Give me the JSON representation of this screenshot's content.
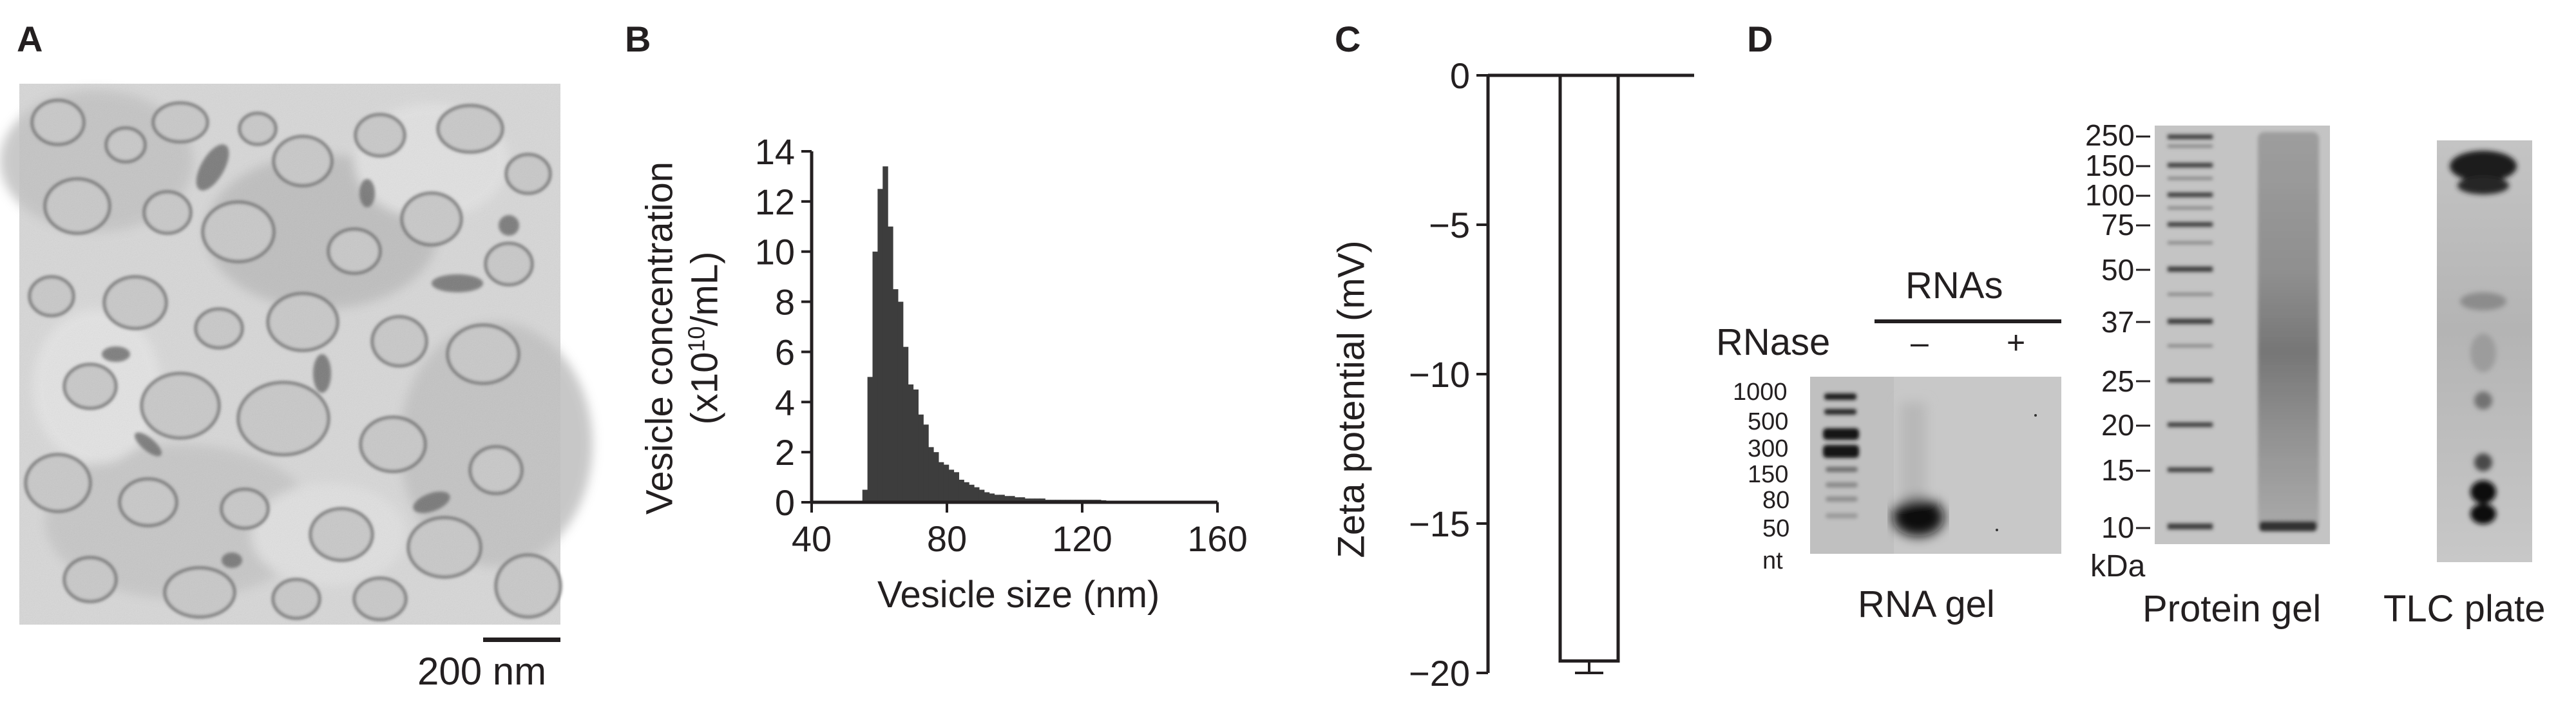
{
  "panels": {
    "a": {
      "label": "A",
      "scalebar": "200 nm"
    },
    "b": {
      "label": "B"
    },
    "c": {
      "label": "C"
    },
    "d": {
      "label": "D",
      "rna_gel": {
        "header": "RNAs",
        "row_label": "RNase",
        "lanes": [
          "–",
          "+"
        ],
        "ladder": [
          "1000",
          "500",
          "300",
          "150",
          "80",
          "50"
        ],
        "ladder_unit": "nt",
        "caption": "RNA gel"
      },
      "protein_gel": {
        "ladder": [
          "250",
          "150",
          "100",
          "75",
          "50",
          "37",
          "25",
          "20",
          "15",
          "10"
        ],
        "ladder_unit": "kDa",
        "caption": "Protein gel"
      },
      "tlc": {
        "caption": "TLC plate"
      }
    }
  },
  "chart_data": [
    {
      "id": "B",
      "type": "bar",
      "title": "",
      "xlabel": "Vesicle size (nm)",
      "ylabel_line1": "Vesicle concentration",
      "ylabel_line2_pre": "(x10",
      "ylabel_line2_sup": "10",
      "ylabel_line2_post": "/mL)",
      "xlim": [
        40,
        160
      ],
      "ylim": [
        0,
        14
      ],
      "xticks": [
        "40",
        "80",
        "120",
        "160"
      ],
      "yticks": [
        "0",
        "2",
        "4",
        "6",
        "8",
        "10",
        "12",
        "14"
      ],
      "bin_width": 1.5,
      "x": [
        55.0,
        56.5,
        58.0,
        59.5,
        61.0,
        62.5,
        64.0,
        65.5,
        67.0,
        68.5,
        70.0,
        71.5,
        73.0,
        74.5,
        76.0,
        77.5,
        79.0,
        80.5,
        82.0,
        83.5,
        85.0,
        86.5,
        88.0,
        89.5,
        91.0,
        92.5,
        94.0,
        95.5,
        97.0,
        98.5,
        100.0,
        101.5,
        103.0,
        104.5,
        106.0,
        107.5,
        109.0,
        110.5,
        112.0,
        113.5,
        115.0,
        116.5,
        118.0,
        119.5,
        121.0,
        122.5,
        124.0,
        125.5,
        127.0,
        128.5,
        130.0,
        131.5,
        133.0,
        134.5,
        136.0,
        137.5,
        139.0
      ],
      "values": [
        0.5,
        5.0,
        10.0,
        12.5,
        13.4,
        11.0,
        8.5,
        8.0,
        6.2,
        4.7,
        4.5,
        3.5,
        3.1,
        2.2,
        2.0,
        1.6,
        1.5,
        1.3,
        1.2,
        0.9,
        0.8,
        0.7,
        0.6,
        0.5,
        0.4,
        0.35,
        0.3,
        0.3,
        0.25,
        0.25,
        0.2,
        0.2,
        0.15,
        0.15,
        0.15,
        0.15,
        0.1,
        0.1,
        0.1,
        0.1,
        0.1,
        0.1,
        0.1,
        0.1,
        0.1,
        0.1,
        0.1,
        0.08,
        0.06,
        0.05,
        0.04,
        0.03,
        0.03,
        0.02,
        0.02,
        0.02,
        0.02
      ]
    },
    {
      "id": "C",
      "type": "bar",
      "title": "",
      "xlabel": "",
      "ylabel": "Zeta potential (mV)",
      "ylim": [
        -20,
        0
      ],
      "yticks": [
        "0",
        "−5",
        "−10",
        "−15",
        "−20"
      ],
      "categories": [
        ""
      ],
      "values": [
        -19.6
      ],
      "error": [
        0.4
      ]
    }
  ]
}
